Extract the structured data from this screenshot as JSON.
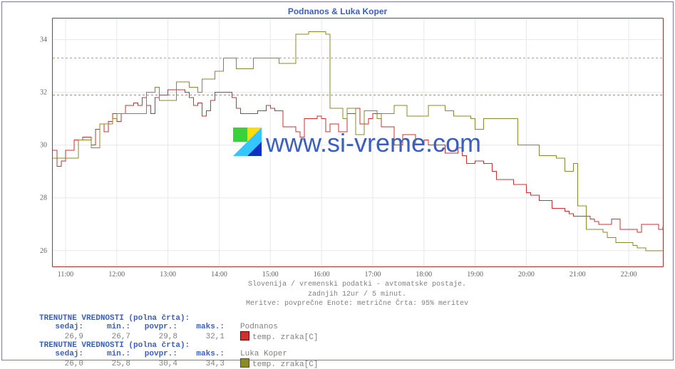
{
  "title": "Podnanos & Luka Koper",
  "site_label": "www.si-vreme.com",
  "watermark_text": "www.si-vreme.com",
  "caption_lines": [
    "Slovenija / vremenski podatki - avtomatske postaje.",
    "zadnjih 12ur / 5 minut.",
    "Meritve: povprečne  Enote: metrične  Črta: 95% meritev"
  ],
  "chart": {
    "type": "line",
    "background_color": "#ffffff",
    "border_color": "#b74d4d",
    "grid_color": "#e8e8e8",
    "x": {
      "ticks": [
        "11:00",
        "12:00",
        "13:00",
        "14:00",
        "15:00",
        "16:00",
        "17:00",
        "18:00",
        "19:00",
        "20:00",
        "21:00",
        "22:00"
      ],
      "interval_minutes": 5,
      "n_points": 144
    },
    "y": {
      "ticks": [
        26,
        28,
        30,
        32,
        34
      ],
      "min": 25.4,
      "max": 34.8
    },
    "series": [
      {
        "name": "Podnanos",
        "color": "#cc3030",
        "stroke_width": 1,
        "dash_ref_value": 31.9,
        "dash_color": "#d46a6a",
        "values": [
          29.8,
          29.2,
          29.4,
          29.8,
          29.8,
          30.2,
          30.2,
          30.3,
          30.3,
          30.0,
          30.6,
          30.8,
          30.5,
          30.9,
          31.2,
          30.9,
          31.2,
          31.5,
          31.5,
          31.6,
          31.5,
          31.8,
          31.5,
          31.2,
          31.8,
          31.9,
          31.9,
          32.1,
          32.1,
          32.1,
          32.1,
          32.0,
          31.8,
          31.5,
          31.6,
          31.1,
          31.3,
          31.7,
          32.0,
          32.0,
          32.0,
          32.0,
          31.8,
          31.4,
          31.2,
          31.2,
          31.2,
          31.2,
          31.3,
          31.3,
          31.5,
          31.4,
          31.3,
          31.3,
          30.7,
          30.7,
          30.7,
          30.5,
          30.3,
          31.0,
          31.0,
          31.0,
          31.1,
          31.0,
          30.5,
          30.8,
          30.8,
          30.5,
          30.5,
          31.2,
          31.2,
          31.4,
          30.8,
          30.8,
          31.0,
          31.2,
          31.2,
          30.7,
          30.7,
          30.7,
          30.0,
          30.0,
          30.4,
          30.4,
          30.4,
          30.0,
          30.0,
          30.2,
          30.0,
          30.0,
          30.0,
          30.0,
          29.7,
          29.7,
          29.7,
          29.9,
          29.6,
          29.3,
          29.3,
          29.4,
          29.4,
          29.3,
          29.3,
          29.0,
          28.7,
          28.7,
          28.7,
          28.7,
          28.5,
          28.5,
          28.5,
          28.2,
          28.1,
          28.1,
          27.9,
          27.9,
          27.9,
          27.6,
          27.6,
          27.6,
          27.5,
          27.4,
          27.3,
          27.3,
          27.3,
          27.3,
          27.2,
          27.1,
          27.0,
          27.0,
          27.0,
          27.2,
          27.2,
          26.8,
          26.8,
          26.8,
          26.8,
          26.7,
          27.0,
          27.0,
          27.0,
          27.0,
          26.8,
          26.9
        ]
      },
      {
        "name": "Luka Koper",
        "color": "#8a8a2b",
        "stroke_width": 1,
        "dash_ref_value": 33.3,
        "dash_color": "#aaaa5a",
        "values": [
          29.5,
          29.5,
          29.5,
          29.5,
          29.5,
          29.5,
          30.2,
          30.2,
          30.2,
          29.9,
          29.9,
          30.8,
          30.8,
          30.8,
          31.0,
          31.2,
          31.2,
          31.2,
          31.2,
          31.2,
          31.2,
          31.2,
          32.0,
          32.0,
          32.2,
          31.7,
          31.7,
          31.7,
          31.7,
          32.4,
          32.4,
          32.4,
          32.2,
          32.2,
          32.0,
          32.5,
          32.5,
          32.5,
          32.8,
          32.8,
          33.3,
          33.3,
          33.3,
          32.9,
          32.9,
          32.9,
          32.9,
          33.3,
          33.3,
          33.3,
          33.3,
          33.3,
          33.3,
          33.1,
          33.1,
          33.1,
          33.1,
          34.2,
          34.2,
          34.2,
          34.3,
          34.3,
          34.3,
          34.3,
          34.2,
          31.4,
          31.4,
          31.4,
          31.0,
          31.4,
          31.4,
          30.4,
          30.4,
          31.3,
          31.3,
          31.3,
          31.0,
          31.2,
          31.2,
          31.2,
          31.5,
          31.5,
          31.5,
          31.1,
          31.1,
          31.1,
          31.1,
          31.1,
          31.5,
          31.5,
          31.5,
          31.5,
          31.3,
          31.3,
          31.1,
          31.1,
          31.1,
          31.1,
          31.0,
          30.6,
          30.6,
          31.0,
          31.0,
          31.0,
          31.0,
          31.0,
          31.0,
          31.0,
          31.0,
          30.0,
          30.0,
          30.0,
          30.0,
          30.0,
          29.6,
          29.6,
          29.6,
          29.6,
          29.5,
          29.5,
          29.0,
          29.0,
          29.3,
          27.7,
          27.7,
          26.8,
          26.8,
          26.8,
          26.8,
          26.7,
          26.5,
          26.5,
          26.3,
          26.3,
          26.3,
          26.3,
          26.2,
          26.1,
          26.1,
          26.0,
          26.0,
          26.0,
          26.0,
          26.0
        ]
      }
    ]
  },
  "stats": [
    {
      "header": "TRENUTNE VREDNOSTI (polna črta):",
      "cols": [
        "sedaj:",
        "min.:",
        "povpr.:",
        "maks.:"
      ],
      "vals": [
        "26,9",
        "26,7",
        "29,8",
        "32,1"
      ],
      "legend_name": "Podnanos",
      "legend_sub": "temp. zraka[C]",
      "swatch_fill": "#cc3030",
      "swatch_border": "#660000"
    },
    {
      "header": "TRENUTNE VREDNOSTI (polna črta):",
      "cols": [
        "sedaj:",
        "min.:",
        "povpr.:",
        "maks.:"
      ],
      "vals": [
        "26,0",
        "25,8",
        "30,4",
        "34,3"
      ],
      "legend_name": "Luka Koper",
      "legend_sub": "temp. zraka[C]",
      "swatch_fill": "#8a8a2b",
      "swatch_border": "#555500"
    }
  ],
  "logo": {
    "colors": [
      "#3bd13b",
      "#ffde00",
      "#33c6ff",
      "#1030c0"
    ]
  }
}
